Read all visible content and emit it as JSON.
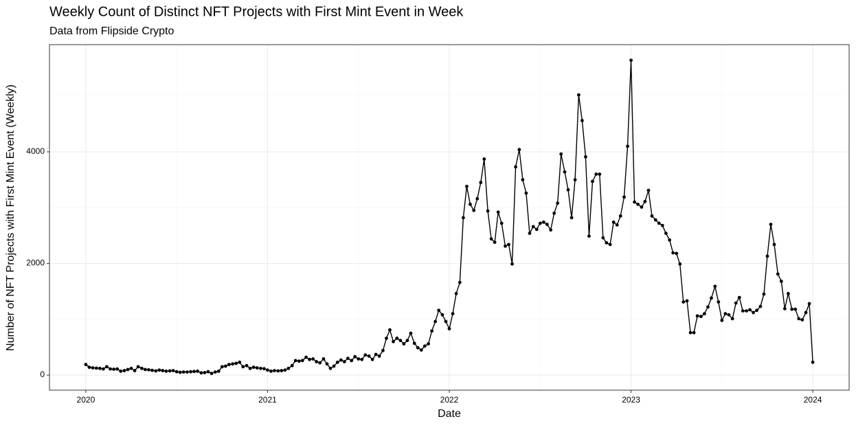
{
  "chart_data": {
    "type": "line",
    "title": "Weekly Count of Distinct NFT Projects with First Mint Event in Week",
    "subtitle": "Data from Flipside Crypto",
    "x_label": "Date",
    "y_label": "Number of NFT Projects with First Mint Event (Weekly)",
    "color": "#000000",
    "grid": true,
    "xlim": [
      2019.8,
      2024.2
    ],
    "xticks": [
      2020,
      2021,
      2022,
      2023,
      2024
    ],
    "ylim": [
      -270,
      5920
    ],
    "yticks": [
      0,
      2000,
      4000
    ],
    "x": [
      2020,
      2020.019,
      2020.038,
      2020.058,
      2020.077,
      2020.096,
      2020.115,
      2020.135,
      2020.154,
      2020.173,
      2020.192,
      2020.212,
      2020.231,
      2020.25,
      2020.269,
      2020.288,
      2020.308,
      2020.327,
      2020.346,
      2020.365,
      2020.385,
      2020.404,
      2020.423,
      2020.442,
      2020.462,
      2020.481,
      2020.5,
      2020.519,
      2020.538,
      2020.558,
      2020.577,
      2020.596,
      2020.615,
      2020.635,
      2020.654,
      2020.673,
      2020.692,
      2020.712,
      2020.731,
      2020.75,
      2020.769,
      2020.788,
      2020.808,
      2020.827,
      2020.846,
      2020.865,
      2020.885,
      2020.904,
      2020.923,
      2020.942,
      2020.962,
      2020.981,
      2021,
      2021.019,
      2021.038,
      2021.058,
      2021.077,
      2021.096,
      2021.115,
      2021.135,
      2021.154,
      2021.173,
      2021.192,
      2021.212,
      2021.231,
      2021.25,
      2021.269,
      2021.288,
      2021.308,
      2021.327,
      2021.346,
      2021.365,
      2021.385,
      2021.404,
      2021.423,
      2021.442,
      2021.462,
      2021.481,
      2021.5,
      2021.519,
      2021.538,
      2021.558,
      2021.577,
      2021.596,
      2021.615,
      2021.635,
      2021.654,
      2021.673,
      2021.692,
      2021.712,
      2021.731,
      2021.75,
      2021.769,
      2021.788,
      2021.808,
      2021.827,
      2021.846,
      2021.865,
      2021.885,
      2021.904,
      2021.923,
      2021.942,
      2021.962,
      2021.981,
      2022,
      2022.019,
      2022.038,
      2022.058,
      2022.077,
      2022.096,
      2022.115,
      2022.135,
      2022.154,
      2022.173,
      2022.192,
      2022.212,
      2022.231,
      2022.25,
      2022.269,
      2022.288,
      2022.308,
      2022.327,
      2022.346,
      2022.365,
      2022.385,
      2022.404,
      2022.423,
      2022.442,
      2022.462,
      2022.481,
      2022.5,
      2022.519,
      2022.538,
      2022.558,
      2022.577,
      2022.596,
      2022.615,
      2022.635,
      2022.654,
      2022.673,
      2022.692,
      2022.712,
      2022.731,
      2022.75,
      2022.769,
      2022.788,
      2022.808,
      2022.827,
      2022.846,
      2022.865,
      2022.885,
      2022.904,
      2022.923,
      2022.942,
      2022.962,
      2022.981,
      2023,
      2023.019,
      2023.038,
      2023.058,
      2023.077,
      2023.096,
      2023.115,
      2023.135,
      2023.154,
      2023.173,
      2023.192,
      2023.212,
      2023.231,
      2023.25,
      2023.269,
      2023.288,
      2023.308,
      2023.327,
      2023.346,
      2023.365,
      2023.385,
      2023.404,
      2023.423,
      2023.442,
      2023.462,
      2023.481,
      2023.5,
      2023.519,
      2023.538,
      2023.558,
      2023.577,
      2023.596,
      2023.615,
      2023.635,
      2023.654,
      2023.673,
      2023.692,
      2023.712,
      2023.731,
      2023.75,
      2023.769,
      2023.788,
      2023.808,
      2023.827,
      2023.846,
      2023.865,
      2023.885,
      2023.904,
      2023.923,
      2023.942,
      2023.962,
      2023.981,
      2024
    ],
    "values": [
      190,
      140,
      130,
      125,
      120,
      110,
      150,
      110,
      105,
      110,
      70,
      80,
      100,
      120,
      80,
      150,
      120,
      100,
      95,
      85,
      75,
      90,
      80,
      70,
      75,
      80,
      60,
      50,
      55,
      55,
      60,
      65,
      70,
      40,
      45,
      60,
      30,
      55,
      70,
      150,
      160,
      190,
      200,
      210,
      230,
      150,
      170,
      120,
      140,
      130,
      120,
      115,
      90,
      70,
      80,
      75,
      80,
      90,
      120,
      170,
      260,
      250,
      260,
      320,
      280,
      290,
      240,
      220,
      290,
      200,
      120,
      160,
      230,
      270,
      240,
      300,
      260,
      330,
      290,
      280,
      360,
      340,
      280,
      370,
      340,
      440,
      660,
      810,
      600,
      660,
      620,
      560,
      620,
      750,
      570,
      490,
      450,
      520,
      560,
      790,
      960,
      1160,
      1080,
      960,
      830,
      1100,
      1460,
      1660,
      2820,
      3380,
      3060,
      2950,
      3160,
      3450,
      3870,
      2940,
      2440,
      2380,
      2920,
      2720,
      2310,
      2340,
      1990,
      3730,
      4040,
      3500,
      3260,
      2540,
      2660,
      2610,
      2720,
      2740,
      2700,
      2600,
      2900,
      3080,
      3960,
      3640,
      3320,
      2820,
      3500,
      5020,
      4560,
      3910,
      2490,
      3470,
      3600,
      3600,
      2460,
      2370,
      2340,
      2740,
      2690,
      2850,
      3190,
      4100,
      5640,
      3100,
      3060,
      3010,
      3110,
      3310,
      2850,
      2780,
      2720,
      2680,
      2540,
      2420,
      2190,
      2180,
      1990,
      1310,
      1330,
      760,
      760,
      1060,
      1050,
      1100,
      1220,
      1380,
      1590,
      1310,
      980,
      1100,
      1080,
      1010,
      1290,
      1390,
      1150,
      1150,
      1170,
      1120,
      1160,
      1230,
      1450,
      2130,
      2700,
      2340,
      1810,
      1680,
      1190,
      1460,
      1180,
      1180,
      1010,
      990,
      1120,
      1280,
      230
    ]
  }
}
